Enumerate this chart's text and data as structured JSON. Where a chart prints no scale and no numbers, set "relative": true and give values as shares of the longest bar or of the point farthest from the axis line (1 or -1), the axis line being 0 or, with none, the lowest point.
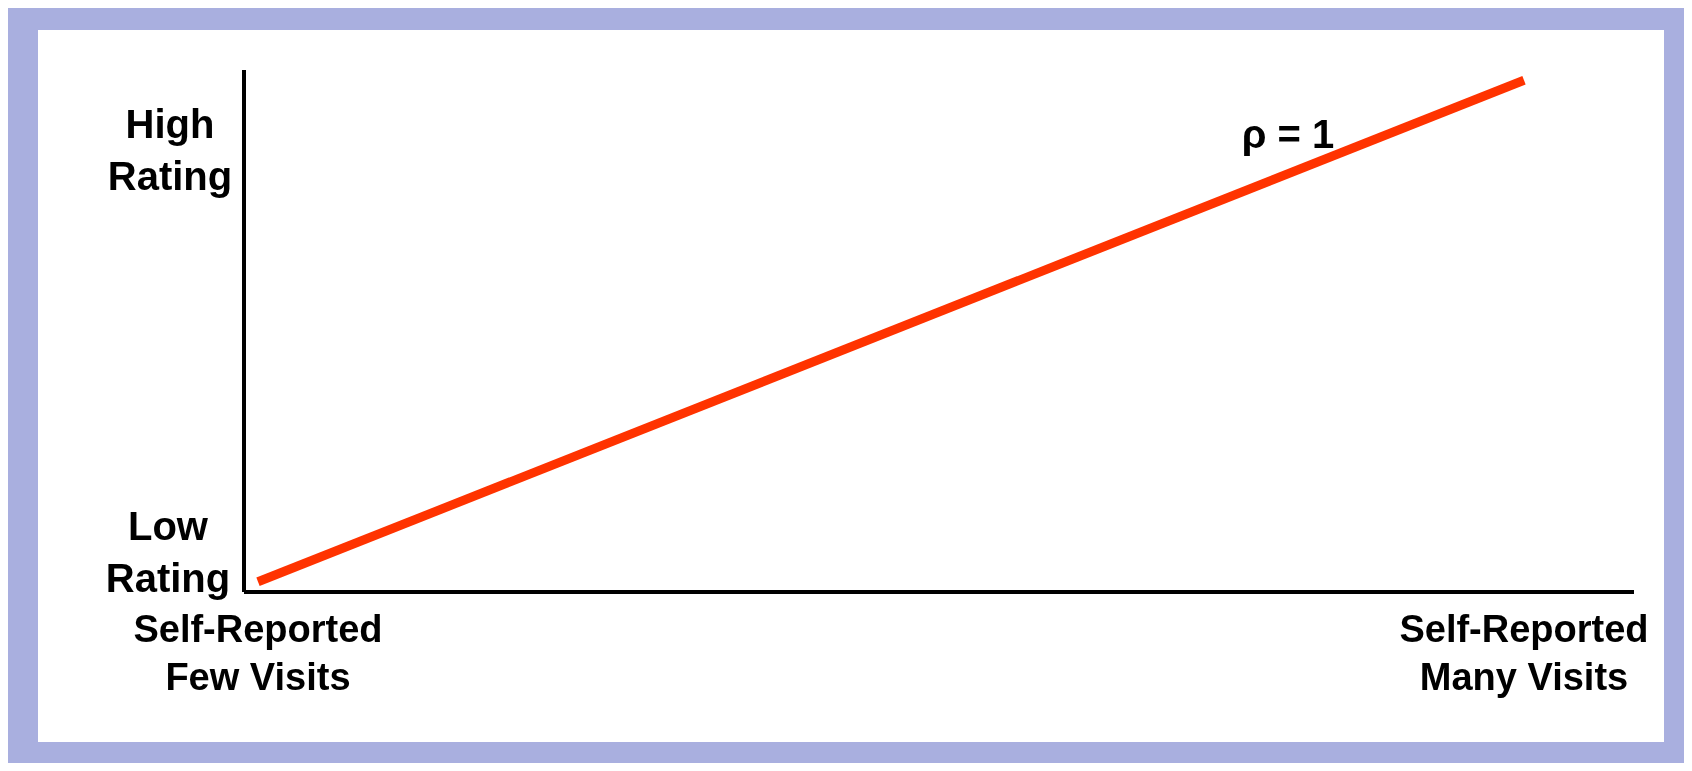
{
  "chart_data": {
    "type": "line",
    "relative": true,
    "categories": [
      "Self-Reported\nFew Visits",
      "Self-Reported\nMany Visits"
    ],
    "series": [
      {
        "color": "#ff3300",
        "values": [
          0.02,
          1
        ]
      }
    ],
    "annotations": [
      "ρ = 1",
      "High Rating",
      "Low Rating"
    ],
    "marker": "none",
    "line_style": "solid"
  }
}
